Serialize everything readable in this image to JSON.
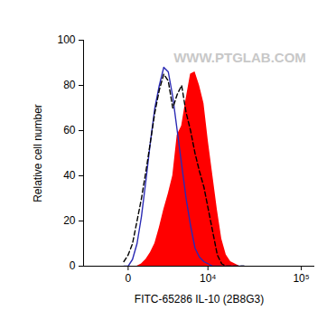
{
  "chart_data": {
    "type": "histogram",
    "x_label": "FITC-65286 IL-10 (2B8G3)",
    "y_label": "Relative cell number",
    "annotations": [
      {
        "text": "WWW.PTGLAB.COM"
      }
    ],
    "log": "x",
    "x": [
      -200,
      0,
      200,
      430,
      680,
      960,
      1270,
      1610,
      1990,
      2410,
      2880,
      3400,
      3970,
      4600,
      5300,
      6080,
      6940,
      7890,
      8950,
      10120,
      11420,
      12860,
      14450,
      16220,
      18170,
      20340,
      22740,
      25400
    ],
    "series": [
      {
        "type": "area",
        "color": "#ff0000",
        "values": [
          0,
          0,
          0,
          0,
          1,
          3,
          6,
          10,
          17,
          25,
          32,
          40,
          58,
          62,
          74,
          85,
          86,
          80,
          72,
          55,
          40,
          25,
          12,
          5,
          2,
          1,
          0,
          0
        ]
      },
      {
        "type": "line",
        "color": "#2a2ab4",
        "line_style": "solid",
        "values": [
          0,
          0,
          3,
          10,
          22,
          38,
          55,
          70,
          80,
          88,
          86,
          75,
          60,
          45,
          30,
          18,
          8,
          4,
          2,
          1,
          0,
          0,
          0,
          0,
          0,
          0,
          0,
          0
        ]
      },
      {
        "type": "line",
        "color": "#000000",
        "line_style": "dashed",
        "values": [
          2,
          5,
          10,
          20,
          30,
          42,
          55,
          68,
          78,
          85,
          82,
          70,
          76,
          80,
          68,
          60,
          50,
          42,
          35,
          25,
          15,
          5,
          1,
          0,
          0,
          0,
          0,
          0
        ]
      }
    ],
    "xlim": [
      -3400,
      137000
    ],
    "xticks": [
      0,
      {
        "value": 10000,
        "label": "10⁴"
      },
      {
        "value": 100000,
        "label": "10⁵"
      }
    ],
    "ylim": [
      0,
      100
    ],
    "yticks": [
      0,
      20,
      40,
      60,
      80,
      100
    ],
    "grid": false
  }
}
